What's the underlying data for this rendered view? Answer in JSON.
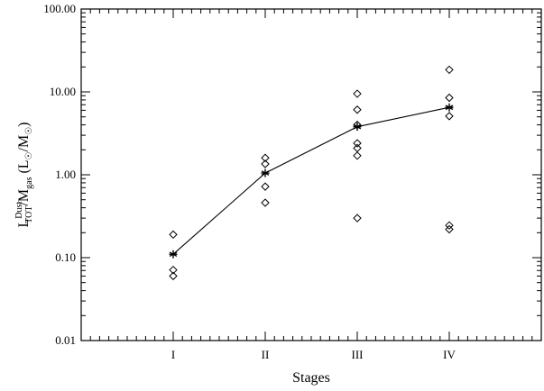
{
  "chart_data": {
    "type": "scatter",
    "title": "",
    "xlabel": "Stages",
    "ylabel": {
      "base_left": "L",
      "super": "Dust",
      "sub": "TOT",
      "slash": "/M",
      "sub2": "gas",
      "unit_open": " (L",
      "unit_mid": "/M",
      "unit_close": ")"
    },
    "y_scale": "log",
    "ylim": [
      0.01,
      100
    ],
    "xlim": [
      0,
      5
    ],
    "categories": [
      "I",
      "II",
      "III",
      "IV"
    ],
    "y_tick_labels": [
      "0.01",
      "0.10",
      "1.00",
      "10.00",
      "100.00"
    ],
    "y_tick_values": [
      0.01,
      0.1,
      1,
      10,
      100
    ],
    "grid": false,
    "series": [
      {
        "marker": "diamond",
        "points": [
          {
            "stage": "I",
            "y": 0.19
          },
          {
            "stage": "I",
            "y": 0.071
          },
          {
            "stage": "I",
            "y": 0.06
          },
          {
            "stage": "II",
            "y": 1.6
          },
          {
            "stage": "II",
            "y": 1.35
          },
          {
            "stage": "II",
            "y": 0.72
          },
          {
            "stage": "II",
            "y": 0.46
          },
          {
            "stage": "III",
            "y": 9.5
          },
          {
            "stage": "III",
            "y": 6.1
          },
          {
            "stage": "III",
            "y": 4.0
          },
          {
            "stage": "III",
            "y": 2.4
          },
          {
            "stage": "III",
            "y": 2.1
          },
          {
            "stage": "III",
            "y": 1.7
          },
          {
            "stage": "III",
            "y": 0.3
          },
          {
            "stage": "IV",
            "y": 18.5
          },
          {
            "stage": "IV",
            "y": 8.5
          },
          {
            "stage": "IV",
            "y": 5.1
          },
          {
            "stage": "IV",
            "y": 0.245
          },
          {
            "stage": "IV",
            "y": 0.22
          }
        ]
      },
      {
        "marker": "asterisk",
        "line": true,
        "points": [
          {
            "stage": "I",
            "y": 0.11
          },
          {
            "stage": "II",
            "y": 1.05
          },
          {
            "stage": "III",
            "y": 3.8
          },
          {
            "stage": "IV",
            "y": 6.5
          }
        ]
      }
    ]
  }
}
